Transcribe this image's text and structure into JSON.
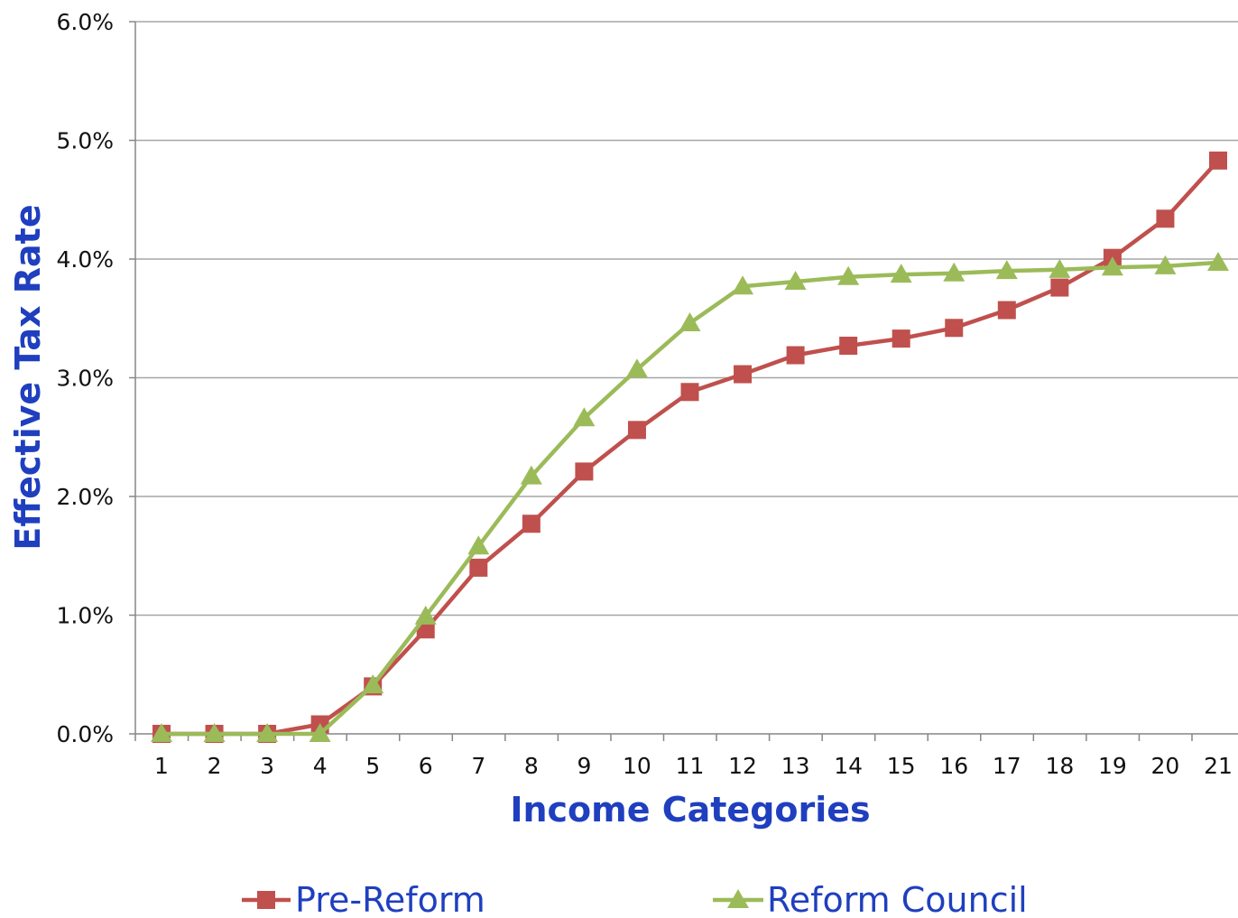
{
  "chart_data": {
    "type": "line",
    "title": "",
    "xlabel": "Income Categories",
    "ylabel": "Effective Tax Rate",
    "categories": [
      "1",
      "2",
      "3",
      "4",
      "5",
      "6",
      "7",
      "8",
      "9",
      "10",
      "11",
      "12",
      "13",
      "14",
      "15",
      "16",
      "17",
      "18",
      "19",
      "20",
      "21"
    ],
    "ylim": [
      0,
      0.06
    ],
    "yticks": [
      0,
      0.01,
      0.02,
      0.03,
      0.04,
      0.05,
      0.06
    ],
    "ytick_labels": [
      "0.0%",
      "1.0%",
      "2.0%",
      "3.0%",
      "4.0%",
      "5.0%",
      "6.0%"
    ],
    "grid": "horizontal",
    "legend_position": "bottom",
    "series": [
      {
        "name": "Pre-Reform",
        "color": "#c0504d",
        "marker": "square",
        "values": [
          0.0,
          0.0,
          0.0,
          0.0008,
          0.004,
          0.0088,
          0.014,
          0.0177,
          0.0221,
          0.0256,
          0.0288,
          0.0303,
          0.0319,
          0.0327,
          0.0333,
          0.0342,
          0.0357,
          0.0376,
          0.0401,
          0.0434,
          0.0483
        ]
      },
      {
        "name": "Reform Council",
        "color": "#9bbb59",
        "marker": "triangle",
        "values": [
          0.0,
          0.0,
          0.0,
          0.0,
          0.0041,
          0.0099,
          0.0158,
          0.0217,
          0.0266,
          0.0307,
          0.0346,
          0.0377,
          0.0381,
          0.0385,
          0.0387,
          0.0388,
          0.039,
          0.0391,
          0.0393,
          0.0394,
          0.0397
        ]
      }
    ]
  },
  "colors": {
    "axis_title": "#1f3fbf",
    "gridline": "#a6a6a6",
    "axis_line": "#868686",
    "legend_text": "#1f3fbf"
  }
}
